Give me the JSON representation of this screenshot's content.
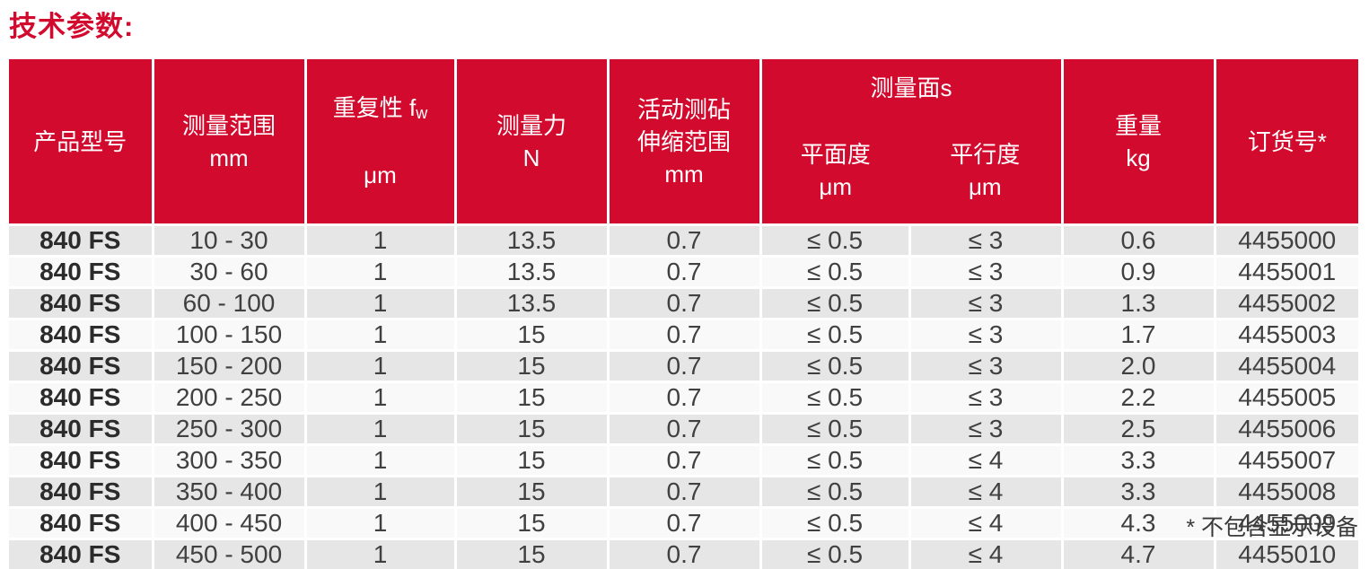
{
  "title": "技术参数:",
  "colors": {
    "header_red": "#d20a2e",
    "row_gray": "#e6e6e6",
    "row_white": "#f9f9f9",
    "text": "#404040"
  },
  "table": {
    "headers": {
      "product_model": "产品型号",
      "measuring_range": "测量范围\nmm",
      "repeatability_prefix": "重复性 f",
      "repeatability_sub": "w",
      "repeatability_unit": "μm",
      "measuring_force": "测量力\nN",
      "anvil_travel": "活动测砧\n伸缩范围\nmm",
      "measuring_faces_group": "测量面s",
      "flatness": "平面度\nμm",
      "parallelism": "平行度\nμm",
      "weight": "重量\nkg",
      "order_no": "订货号*"
    },
    "col_names": [
      "product-model",
      "measuring-range",
      "repeatability",
      "measuring-force",
      "anvil-travel",
      "flatness",
      "parallelism",
      "weight",
      "order-no"
    ],
    "rows": [
      [
        "840 FS",
        "10 - 30",
        "1",
        "13.5",
        "0.7",
        "≤ 0.5",
        "≤ 3",
        "0.6",
        "4455000"
      ],
      [
        "840 FS",
        "30 - 60",
        "1",
        "13.5",
        "0.7",
        "≤ 0.5",
        "≤ 3",
        "0.9",
        "4455001"
      ],
      [
        "840 FS",
        "60 - 100",
        "1",
        "13.5",
        "0.7",
        "≤ 0.5",
        "≤ 3",
        "1.3",
        "4455002"
      ],
      [
        "840 FS",
        "100 - 150",
        "1",
        "15",
        "0.7",
        "≤ 0.5",
        "≤ 3",
        "1.7",
        "4455003"
      ],
      [
        "840 FS",
        "150 - 200",
        "1",
        "15",
        "0.7",
        "≤ 0.5",
        "≤ 3",
        "2.0",
        "4455004"
      ],
      [
        "840 FS",
        "200 - 250",
        "1",
        "15",
        "0.7",
        "≤ 0.5",
        "≤ 3",
        "2.2",
        "4455005"
      ],
      [
        "840 FS",
        "250 - 300",
        "1",
        "15",
        "0.7",
        "≤ 0.5",
        "≤ 3",
        "2.5",
        "4455006"
      ],
      [
        "840 FS",
        "300 - 350",
        "1",
        "15",
        "0.7",
        "≤ 0.5",
        "≤ 4",
        "3.3",
        "4455007"
      ],
      [
        "840 FS",
        "350 - 400",
        "1",
        "15",
        "0.7",
        "≤ 0.5",
        "≤ 4",
        "3.3",
        "4455008"
      ],
      [
        "840 FS",
        "400 - 450",
        "1",
        "15",
        "0.7",
        "≤ 0.5",
        "≤ 4",
        "4.3",
        "4455009"
      ],
      [
        "840 FS",
        "450 - 500",
        "1",
        "15",
        "0.7",
        "≤ 0.5",
        "≤ 4",
        "4.7",
        "4455010"
      ]
    ]
  },
  "footnote": "* 不包含显示设备"
}
